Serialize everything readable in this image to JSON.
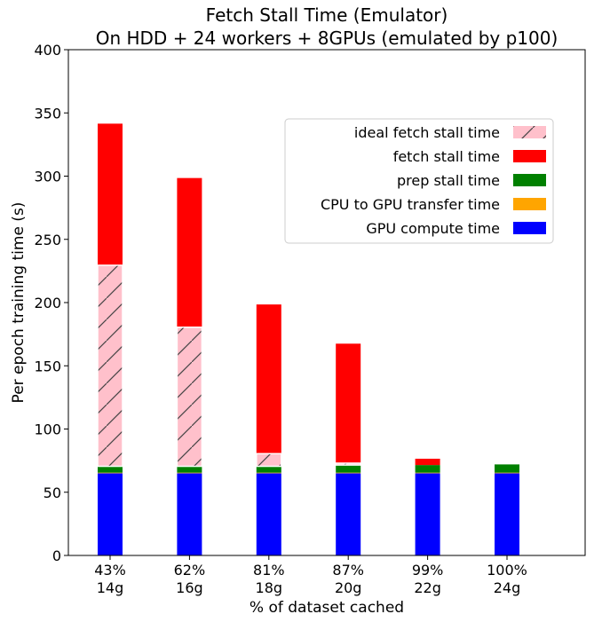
{
  "chart_data": {
    "type": "bar",
    "stacked": true,
    "title": "Fetch Stall Time (Emulator)",
    "subtitle": "On HDD + 24 workers + 8GPUs (emulated by p100)",
    "xlabel": "% of dataset cached",
    "ylabel": "Per epoch training time (s)",
    "ylim": [
      0,
      400
    ],
    "yticks": [
      0,
      50,
      100,
      150,
      200,
      250,
      300,
      350,
      400
    ],
    "categories": [
      [
        "43%",
        "14g"
      ],
      [
        "62%",
        "16g"
      ],
      [
        "81%",
        "18g"
      ],
      [
        "87%",
        "20g"
      ],
      [
        "99%",
        "22g"
      ],
      [
        "100%",
        "24g"
      ]
    ],
    "series": [
      {
        "name": "GPU compute time",
        "color": "#0000ff",
        "values": [
          65,
          65,
          65,
          65,
          65,
          65
        ]
      },
      {
        "name": "CPU to GPU transfer time",
        "color": "#ffa500",
        "values": [
          0.5,
          0.5,
          0.5,
          0.5,
          0.5,
          0.5
        ]
      },
      {
        "name": "prep stall time",
        "color": "#008000",
        "values": [
          5,
          5,
          5,
          6,
          6,
          6.5
        ]
      },
      {
        "name": "fetch stall time",
        "color": "#ff0000",
        "values": [
          271,
          228,
          128,
          96,
          5,
          0
        ]
      }
    ],
    "ideal_fetch_stall": {
      "name": "ideal fetch stall time",
      "color": "#ffc0cb",
      "hatch": "/",
      "values": [
        159,
        110,
        10,
        1.5,
        0,
        0
      ]
    },
    "legend": {
      "placement": "upper right",
      "entries": [
        "ideal fetch stall time",
        "fetch stall time",
        "prep stall time",
        "CPU to GPU transfer time",
        "GPU compute time"
      ]
    },
    "grid": false
  }
}
